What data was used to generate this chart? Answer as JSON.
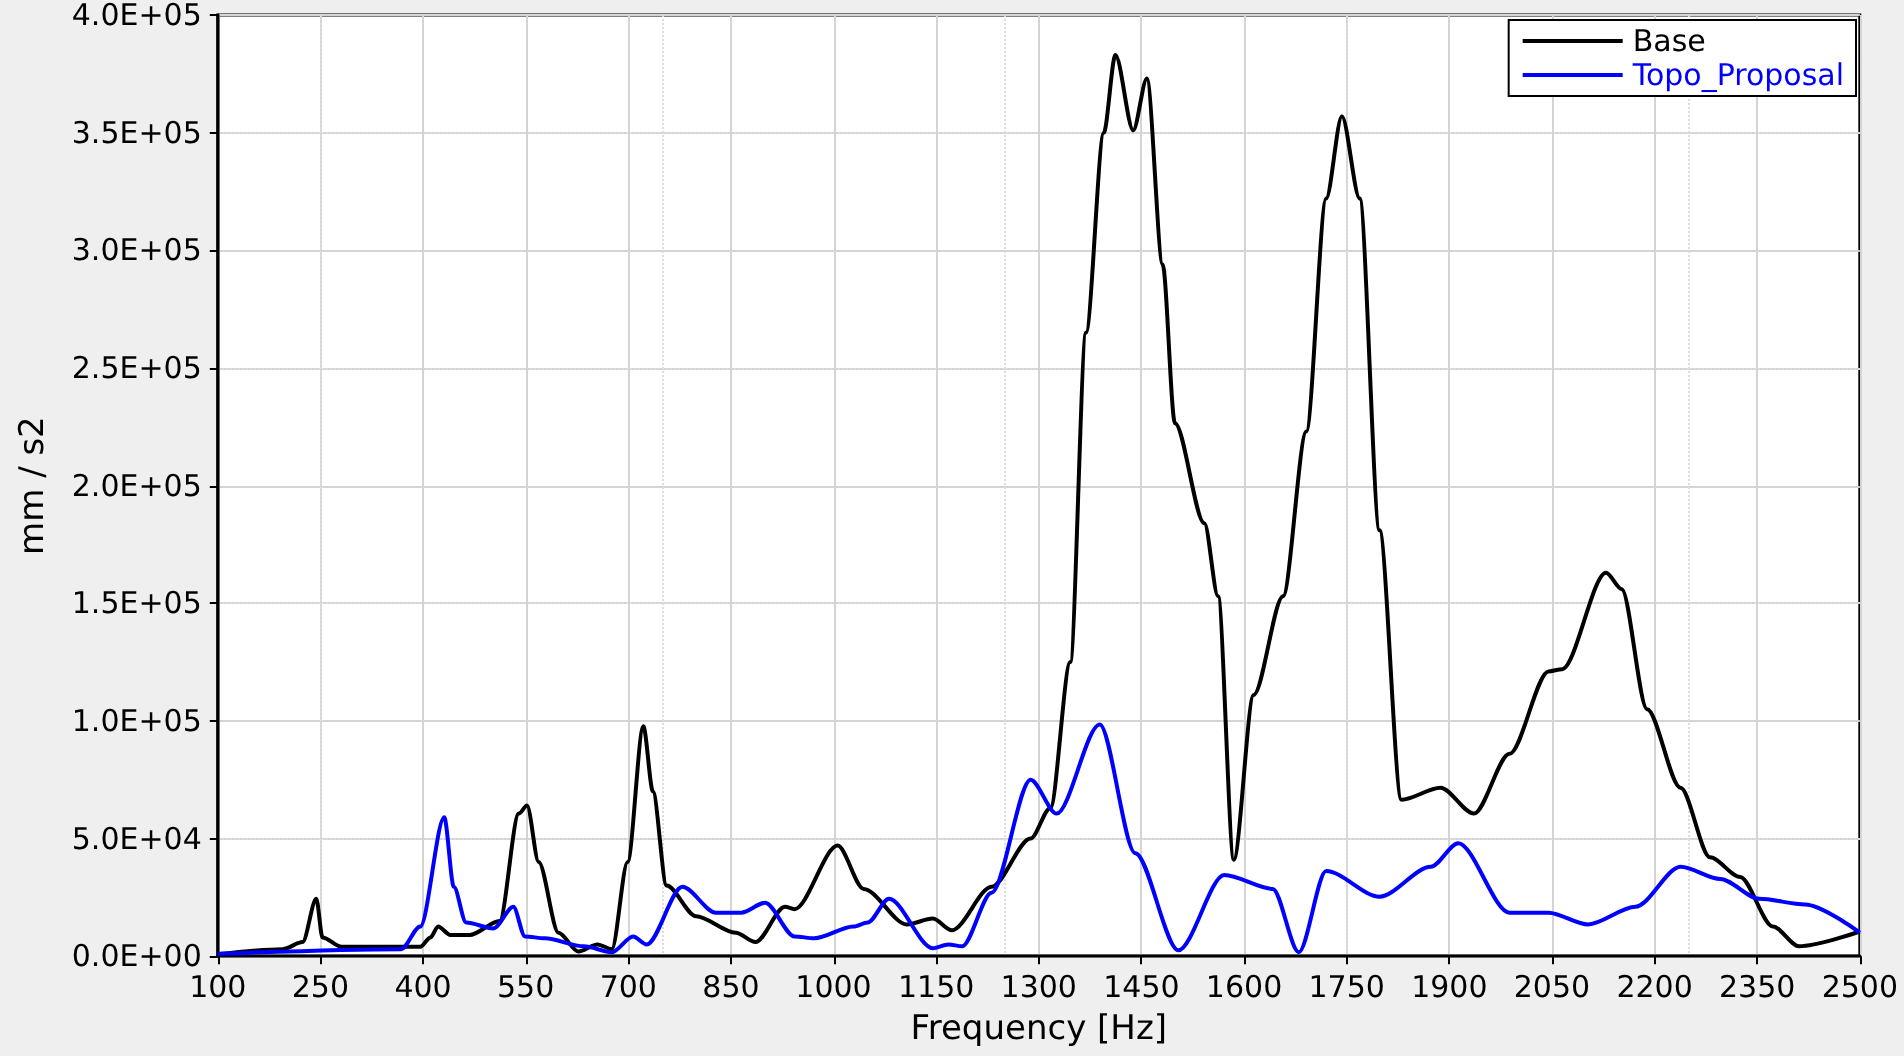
{
  "chart_data": {
    "type": "line",
    "xlabel": "Frequency [Hz]",
    "ylabel": "mm / s2",
    "xlim": [
      100,
      2500
    ],
    "xticks": [
      100,
      250,
      400,
      550,
      700,
      850,
      1000,
      1150,
      1300,
      1450,
      1600,
      1750,
      1900,
      2050,
      2200,
      2350,
      2500
    ],
    "ylim": [
      0,
      400000
    ],
    "yticks": [
      {
        "value": 0,
        "label": "0.0E+00"
      },
      {
        "value": 50000,
        "label": "5.0E+04"
      },
      {
        "value": 100000,
        "label": "1.0E+05"
      },
      {
        "value": 150000,
        "label": "1.5E+05"
      },
      {
        "value": 200000,
        "label": "2.0E+05"
      },
      {
        "value": 250000,
        "label": "2.5E+05"
      },
      {
        "value": 300000,
        "label": "3.0E+05"
      },
      {
        "value": 350000,
        "label": "3.5E+05"
      },
      {
        "value": 400000,
        "label": "4.0E+05"
      }
    ],
    "grid": true,
    "legend": "top right",
    "marker": "none",
    "line_style": "solid",
    "series": [
      {
        "name": "Base",
        "color": "#000000",
        "x": [
          100,
          195,
          224,
          244,
          253,
          281,
          396,
          411,
          422,
          440,
          468,
          512,
          540,
          552,
          569,
          598,
          627,
          655,
          676,
          699,
          722,
          736,
          756,
          799,
          857,
          886,
          929,
          943,
          1006,
          1044,
          1107,
          1145,
          1173,
          1231,
          1288,
          1317,
          1346,
          1369,
          1395,
          1412,
          1438,
          1458,
          1481,
          1499,
          1542,
          1562,
          1585,
          1614,
          1657,
          1691,
          1720,
          1743,
          1769,
          1798,
          1830,
          1887,
          1936,
          1988,
          2045,
          2065,
          2129,
          2152,
          2189,
          2238,
          2281,
          2325,
          2373,
          2411,
          2500
        ],
        "values": [
          800,
          3000,
          6000,
          24400,
          8000,
          4000,
          4000,
          8000,
          12600,
          9000,
          9000,
          15000,
          60600,
          64000,
          40000,
          10000,
          2000,
          5000,
          3000,
          40000,
          97700,
          70000,
          30000,
          17000,
          10000,
          6000,
          21000,
          20000,
          47000,
          28600,
          13500,
          16000,
          11000,
          29500,
          50000,
          63000,
          125000,
          265000,
          350000,
          383000,
          351000,
          373000,
          294000,
          226500,
          184000,
          153000,
          41000,
          111000,
          153000,
          223000,
          322000,
          357000,
          322000,
          181000,
          66500,
          71600,
          60600,
          86000,
          121000,
          122000,
          163000,
          156000,
          105000,
          71600,
          42000,
          33700,
          12600,
          4200,
          10500
        ]
      },
      {
        "name": "Topo_Proposal",
        "color": "#0000ff",
        "x": [
          100,
          368,
          396,
          431,
          445,
          463,
          503,
          532,
          549,
          578,
          635,
          676,
          707,
          727,
          779,
          828,
          865,
          900,
          943,
          972,
          1029,
          1050,
          1081,
          1145,
          1168,
          1188,
          1231,
          1288,
          1326,
          1389,
          1441,
          1504,
          1571,
          1642,
          1680,
          1720,
          1798,
          1873,
          1913,
          1988,
          2045,
          2103,
          2172,
          2238,
          2296,
          2353,
          2420,
          2500
        ],
        "values": [
          1000,
          3000,
          12600,
          59000,
          29500,
          14300,
          11800,
          21000,
          8400,
          7600,
          4200,
          1700,
          8400,
          5000,
          29500,
          18500,
          18500,
          22700,
          8400,
          7600,
          12600,
          14300,
          24400,
          3400,
          5000,
          4200,
          27000,
          75000,
          60600,
          98500,
          43800,
          2500,
          34500,
          28600,
          1700,
          36200,
          25300,
          38000,
          48000,
          18500,
          18500,
          13500,
          21000,
          38000,
          32800,
          24400,
          22000,
          10000
        ]
      }
    ]
  }
}
